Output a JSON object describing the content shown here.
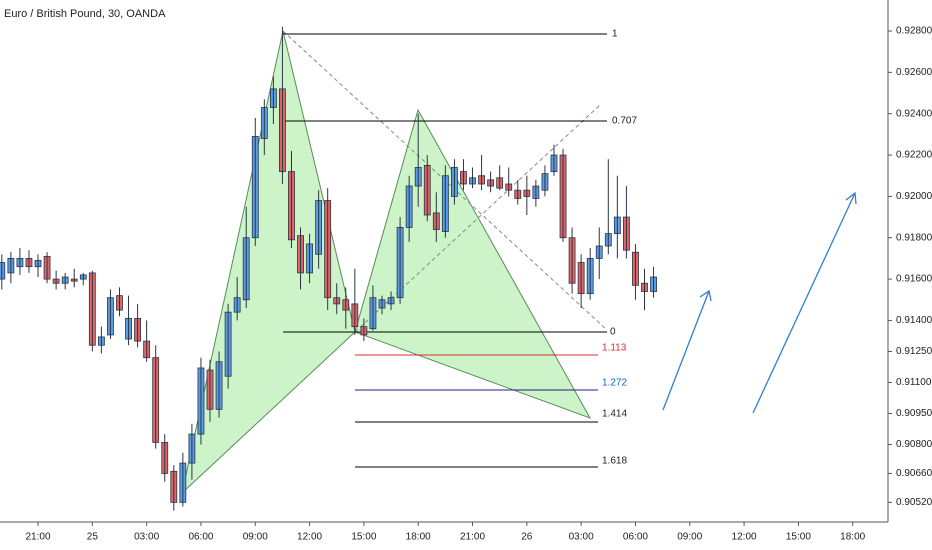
{
  "chart_data": {
    "type": "candlestick",
    "title": "Euro / British Pound, 30, OANDA",
    "x": [
      -4,
      -3,
      -2,
      -1,
      0,
      1,
      2,
      3,
      4,
      5,
      6,
      7,
      8,
      9,
      10,
      11,
      12,
      13,
      14,
      15,
      16,
      17,
      18,
      19,
      20,
      21,
      22,
      23,
      24,
      25,
      26,
      27,
      28,
      29,
      30,
      31,
      32,
      33,
      34,
      35,
      36,
      37,
      38,
      39,
      40,
      41,
      42,
      43,
      44,
      45,
      46,
      47,
      48,
      49,
      50,
      51,
      52,
      53,
      54,
      55,
      56,
      57,
      58,
      59,
      60,
      61,
      62,
      63,
      64,
      65,
      66,
      67,
      68
    ],
    "open": [
      0.916,
      0.9163,
      0.9166,
      0.917,
      0.9166,
      0.9171,
      0.916,
      0.9158,
      0.916,
      0.916,
      0.9163,
      0.9128,
      0.9133,
      0.9152,
      0.9131,
      0.9141,
      0.913,
      0.9122,
      0.9081,
      0.9067,
      0.9052,
      0.9071,
      0.9085,
      0.9116,
      0.9097,
      0.9113,
      0.9144,
      0.915,
      0.918,
      0.9228,
      0.9243,
      0.9252,
      0.9212,
      0.9181,
      0.9163,
      0.9172,
      0.9198,
      0.9151,
      0.915,
      0.9148,
      0.9137,
      0.9136,
      0.9146,
      0.9148,
      0.9151,
      0.9185,
      0.9205,
      0.9215,
      0.9192,
      0.9183,
      0.92,
      0.9212,
      0.9206,
      0.921,
      0.9208,
      0.9209,
      0.9206,
      0.9203,
      0.9203,
      0.9199,
      0.9203,
      0.9212,
      0.922,
      0.918,
      0.9168,
      0.9153,
      0.917,
      0.9176,
      0.9182,
      0.919,
      0.9173,
      0.9158,
      0.9154
    ],
    "high": [
      0.9172,
      0.9173,
      0.9175,
      0.9174,
      0.9172,
      0.9173,
      0.9164,
      0.9163,
      0.9165,
      0.9163,
      0.9164,
      0.9137,
      0.9155,
      0.9156,
      0.9152,
      0.9148,
      0.914,
      0.9128,
      0.9085,
      0.907,
      0.9076,
      0.909,
      0.9122,
      0.9121,
      0.9125,
      0.9148,
      0.9161,
      0.9195,
      0.9238,
      0.9247,
      0.9258,
      0.9282,
      0.9222,
      0.9185,
      0.9182,
      0.9203,
      0.9204,
      0.9158,
      0.9156,
      0.9165,
      0.9141,
      0.9157,
      0.9152,
      0.9154,
      0.919,
      0.921,
      0.924,
      0.922,
      0.9202,
      0.9215,
      0.9218,
      0.9218,
      0.9214,
      0.922,
      0.9212,
      0.9215,
      0.9214,
      0.9208,
      0.921,
      0.9208,
      0.9215,
      0.9225,
      0.9223,
      0.9185,
      0.9172,
      0.9175,
      0.9185,
      0.9218,
      0.921,
      0.9205,
      0.9177,
      0.9165,
      0.9166
    ],
    "low": [
      0.9155,
      0.9158,
      0.9162,
      0.9163,
      0.9161,
      0.9158,
      0.9155,
      0.9155,
      0.9156,
      0.9157,
      0.9125,
      0.9124,
      0.9131,
      0.9142,
      0.9128,
      0.9127,
      0.912,
      0.9078,
      0.9062,
      0.9048,
      0.905,
      0.9063,
      0.908,
      0.9091,
      0.9093,
      0.9107,
      0.914,
      0.9146,
      0.9176,
      0.922,
      0.9235,
      0.9206,
      0.9175,
      0.9155,
      0.9158,
      0.9165,
      0.9145,
      0.9143,
      0.9136,
      0.9133,
      0.913,
      0.9135,
      0.9143,
      0.9145,
      0.9148,
      0.9178,
      0.9195,
      0.9188,
      0.9178,
      0.918,
      0.9196,
      0.9203,
      0.9204,
      0.9203,
      0.9202,
      0.9203,
      0.92,
      0.9196,
      0.9191,
      0.9195,
      0.92,
      0.921,
      0.9178,
      0.9153,
      0.9146,
      0.915,
      0.916,
      0.9172,
      0.917,
      0.917,
      0.915,
      0.9145,
      0.9151
    ],
    "close": [
      0.9168,
      0.917,
      0.917,
      0.9166,
      0.9169,
      0.916,
      0.9158,
      0.9161,
      0.9159,
      0.9162,
      0.9128,
      0.9132,
      0.9151,
      0.9145,
      0.9141,
      0.913,
      0.9122,
      0.9081,
      0.9066,
      0.9052,
      0.9071,
      0.9085,
      0.9117,
      0.9097,
      0.912,
      0.9144,
      0.9151,
      0.918,
      0.9229,
      0.9243,
      0.9252,
      0.9212,
      0.9179,
      0.9163,
      0.9177,
      0.9198,
      0.9151,
      0.9148,
      0.9145,
      0.9137,
      0.9133,
      0.9151,
      0.915,
      0.9151,
      0.9185,
      0.9205,
      0.9214,
      0.9191,
      0.9184,
      0.921,
      0.9214,
      0.9206,
      0.9209,
      0.9206,
      0.9205,
      0.9204,
      0.9203,
      0.9199,
      0.92,
      0.9205,
      0.9211,
      0.922,
      0.918,
      0.9158,
      0.9153,
      0.917,
      0.9176,
      0.9182,
      0.919,
      0.9174,
      0.9157,
      0.9154,
      0.9161
    ],
    "up_color": "#5b9ee6",
    "down_color": "#e06666",
    "border_color": "#2a3446",
    "xlim": [
      -4.2,
      93.9
    ],
    "xticks": [
      {
        "value": 0,
        "label": "21:00"
      },
      {
        "value": 6,
        "label": "25"
      },
      {
        "value": 12,
        "label": "03:00"
      },
      {
        "value": 18,
        "label": "06:00"
      },
      {
        "value": 24,
        "label": "09:00"
      },
      {
        "value": 30,
        "label": "12:00"
      },
      {
        "value": 36,
        "label": "15:00"
      },
      {
        "value": 42,
        "label": "18:00"
      },
      {
        "value": 48,
        "label": "21:00"
      },
      {
        "value": 54,
        "label": "26"
      },
      {
        "value": 60,
        "label": "03:00"
      },
      {
        "value": 66,
        "label": "06:00"
      },
      {
        "value": 72,
        "label": "09:00"
      },
      {
        "value": 78,
        "label": "12:00"
      },
      {
        "value": 84,
        "label": "15:00"
      },
      {
        "value": 90,
        "label": "18:00"
      }
    ],
    "ylim": [
      0.90425,
      0.9295
    ],
    "yticks": [
      {
        "value": 0.928,
        "label": "0.92800"
      },
      {
        "value": 0.926,
        "label": "0.92600"
      },
      {
        "value": 0.924,
        "label": "0.92400"
      },
      {
        "value": 0.922,
        "label": "0.92200"
      },
      {
        "value": 0.92,
        "label": "0.92000"
      },
      {
        "value": 0.918,
        "label": "0.91800"
      },
      {
        "value": 0.916,
        "label": "0.91600"
      },
      {
        "value": 0.914,
        "label": "0.91400"
      },
      {
        "value": 0.9125,
        "label": "0.91250"
      },
      {
        "value": 0.911,
        "label": "0.91100"
      },
      {
        "value": 0.9095,
        "label": "0.90950"
      },
      {
        "value": 0.908,
        "label": "0.90800"
      },
      {
        "value": 0.9066,
        "label": "0.90660"
      },
      {
        "value": 0.9052,
        "label": "0.90520"
      }
    ],
    "grid": false,
    "annotations": [
      "1",
      "0.707",
      "0",
      "1.113",
      "1.272",
      "1.414",
      "1.618"
    ]
  }
}
